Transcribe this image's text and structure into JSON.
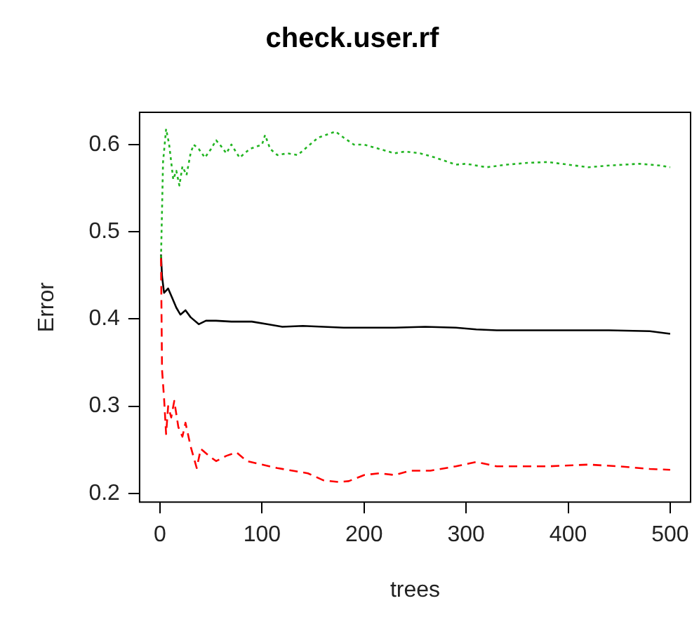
{
  "chart_data": {
    "type": "line",
    "title": "check.user.rf",
    "xlabel": "trees",
    "ylabel": "Error",
    "xlim": [
      -20,
      520
    ],
    "ylim": [
      0.19,
      0.637
    ],
    "xticks": [
      0,
      100,
      200,
      300,
      400,
      500
    ],
    "yticks": [
      0.2,
      0.3,
      0.4,
      0.5,
      0.6
    ],
    "grid": false,
    "legend": false,
    "marker": "none",
    "series": [
      {
        "color": "#000000",
        "line_style": "solid",
        "x": [
          1,
          2,
          4,
          8,
          12,
          16,
          20,
          25,
          30,
          38,
          45,
          55,
          70,
          90,
          105,
          120,
          140,
          160,
          180,
          200,
          230,
          260,
          290,
          310,
          330,
          360,
          400,
          440,
          480,
          500
        ],
        "values": [
          0.474,
          0.449,
          0.43,
          0.435,
          0.424,
          0.413,
          0.405,
          0.41,
          0.402,
          0.394,
          0.398,
          0.398,
          0.397,
          0.397,
          0.394,
          0.391,
          0.392,
          0.391,
          0.39,
          0.39,
          0.39,
          0.391,
          0.39,
          0.388,
          0.387,
          0.387,
          0.387,
          0.387,
          0.386,
          0.383
        ]
      },
      {
        "color": "#ff0000",
        "line_style": "dashed",
        "x": [
          1,
          2,
          4,
          6,
          8,
          11,
          14,
          18,
          22,
          25,
          30,
          36,
          40,
          48,
          55,
          65,
          75,
          85,
          100,
          115,
          130,
          145,
          160,
          175,
          185,
          200,
          215,
          230,
          245,
          265,
          290,
          310,
          330,
          360,
          380,
          420,
          450,
          480,
          500
        ],
        "values": [
          0.47,
          0.342,
          0.309,
          0.268,
          0.3,
          0.287,
          0.306,
          0.276,
          0.265,
          0.281,
          0.254,
          0.229,
          0.251,
          0.243,
          0.237,
          0.243,
          0.247,
          0.237,
          0.233,
          0.229,
          0.226,
          0.223,
          0.215,
          0.213,
          0.214,
          0.221,
          0.223,
          0.221,
          0.226,
          0.226,
          0.231,
          0.236,
          0.231,
          0.231,
          0.231,
          0.233,
          0.231,
          0.228,
          0.227
        ]
      },
      {
        "color": "#22b522",
        "line_style": "dotted",
        "x": [
          1,
          3,
          6,
          9,
          13,
          16,
          19,
          22,
          26,
          30,
          33,
          38,
          44,
          50,
          55,
          60,
          65,
          70,
          78,
          88,
          100,
          103,
          108,
          115,
          125,
          135,
          145,
          155,
          165,
          172,
          180,
          190,
          200,
          215,
          230,
          240,
          255,
          270,
          290,
          300,
          320,
          340,
          360,
          380,
          400,
          420,
          440,
          470,
          490,
          500
        ],
        "values": [
          0.47,
          0.58,
          0.618,
          0.6,
          0.56,
          0.57,
          0.553,
          0.575,
          0.565,
          0.59,
          0.6,
          0.595,
          0.585,
          0.595,
          0.605,
          0.598,
          0.59,
          0.6,
          0.585,
          0.595,
          0.6,
          0.611,
          0.595,
          0.588,
          0.59,
          0.588,
          0.598,
          0.608,
          0.612,
          0.615,
          0.608,
          0.6,
          0.6,
          0.595,
          0.59,
          0.592,
          0.59,
          0.585,
          0.577,
          0.578,
          0.574,
          0.577,
          0.579,
          0.58,
          0.577,
          0.574,
          0.576,
          0.578,
          0.576,
          0.574
        ]
      }
    ]
  }
}
